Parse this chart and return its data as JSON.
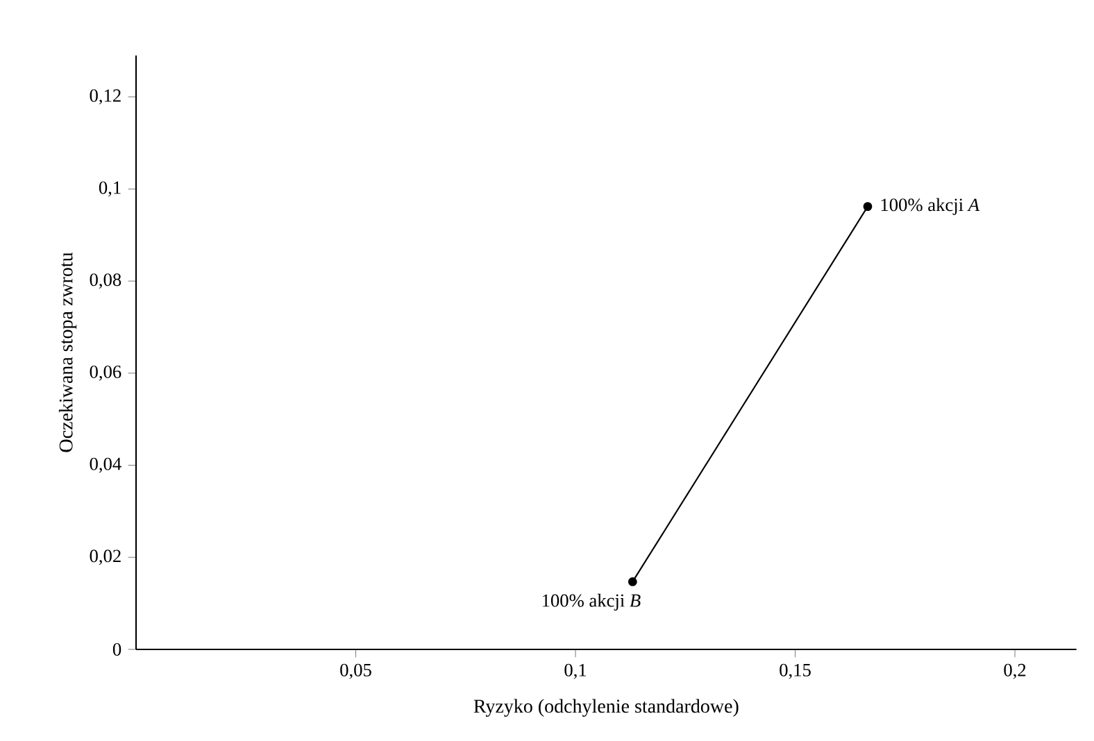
{
  "chart_data": {
    "type": "line",
    "xlabel": "Ryzyko (odchylenie standardowe)",
    "ylabel": "Oczekiwana stopa zwrotu",
    "x": [
      0.113,
      0.1665
    ],
    "series": [
      {
        "color": "#000000",
        "values": [
          0.0147,
          0.0962
        ]
      }
    ],
    "marker": "circle",
    "line_style": "solid",
    "xlim": [
      0,
      0.214
    ],
    "ylim": [
      0,
      0.129
    ],
    "xticks": [
      {
        "value": 0.05,
        "label": "0,05"
      },
      {
        "value": 0.1,
        "label": "0,1"
      },
      {
        "value": 0.15,
        "label": "0,15"
      },
      {
        "value": 0.2,
        "label": "0,2"
      }
    ],
    "yticks": [
      0,
      {
        "value": 0.02,
        "label": "0,02"
      },
      {
        "value": 0.04,
        "label": "0,04"
      },
      {
        "value": 0.06,
        "label": "0,06"
      },
      {
        "value": 0.08,
        "label": "0,08"
      },
      {
        "value": 0.1,
        "label": "0,1"
      },
      {
        "value": 0.12,
        "label": "0,12"
      }
    ],
    "annotations": [
      {
        "text": "100% akcji *B*",
        "x": 0.113,
        "y": 0.0147
      },
      {
        "text": "100% akcji *A*",
        "x": 0.1665,
        "y": 0.0962
      }
    ]
  }
}
